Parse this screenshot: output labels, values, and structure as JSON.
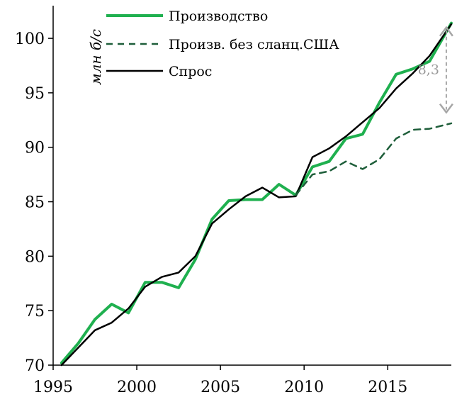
{
  "chart_data": {
    "type": "line",
    "ylabel": "млн б/с",
    "xlim": [
      1995,
      2018.8
    ],
    "ylim": [
      70,
      103
    ],
    "x_ticks": [
      1995,
      2000,
      2005,
      2010,
      2015
    ],
    "y_ticks": [
      70,
      75,
      80,
      85,
      90,
      95,
      100
    ],
    "grid": false,
    "legend_position": "top-left",
    "series": [
      {
        "name": "Производство",
        "color": "#1fb04f",
        "style": "solid",
        "x": [
          1995.5,
          1996.5,
          1997.5,
          1998.5,
          1999.5,
          2000.5,
          2001.5,
          2002.5,
          2003.5,
          2004.5,
          2005.5,
          2006.5,
          2007.5,
          2008.5,
          2009.5,
          2010.5,
          2011.5,
          2012.5,
          2013.5,
          2014.5,
          2015.5,
          2016.5,
          2017.5,
          2018.8
        ],
        "values": [
          70.2,
          72.0,
          74.2,
          75.6,
          74.8,
          77.6,
          77.6,
          77.1,
          79.7,
          83.4,
          85.1,
          85.2,
          85.2,
          86.6,
          85.6,
          88.2,
          88.7,
          90.8,
          91.2,
          94.1,
          96.7,
          97.2,
          97.9,
          101.4
        ]
      },
      {
        "name": "Произв. без сланц.США",
        "color": "#1e5e3a",
        "style": "dashed",
        "x": [
          2009.5,
          2010.5,
          2011.5,
          2012.5,
          2013.5,
          2014.5,
          2015.5,
          2016.5,
          2017.5,
          2018.8
        ],
        "values": [
          85.6,
          87.5,
          87.8,
          88.7,
          88.0,
          88.9,
          90.8,
          91.6,
          91.7,
          92.2
        ]
      },
      {
        "name": "Спрос",
        "color": "#000000",
        "style": "solid",
        "x": [
          1995.5,
          1996.5,
          1997.5,
          1998.5,
          1999.5,
          2000.5,
          2001.5,
          2002.5,
          2003.5,
          2004.5,
          2005.5,
          2006.5,
          2007.5,
          2008.5,
          2009.5,
          2010.5,
          2011.5,
          2012.5,
          2013.5,
          2014.5,
          2015.5,
          2016.5,
          2017.5,
          2018.8
        ],
        "values": [
          70.0,
          71.6,
          73.2,
          73.9,
          75.2,
          77.2,
          78.1,
          78.5,
          80.0,
          83.0,
          84.3,
          85.5,
          86.3,
          85.4,
          85.5,
          89.1,
          89.9,
          91.0,
          92.3,
          93.6,
          95.4,
          96.8,
          98.4,
          101.3
        ]
      }
    ],
    "annotation": {
      "text": "8,3",
      "x": 2018.5,
      "y_top": 101.0,
      "y_bottom": 93.2,
      "color": "#a6a6a6"
    }
  }
}
